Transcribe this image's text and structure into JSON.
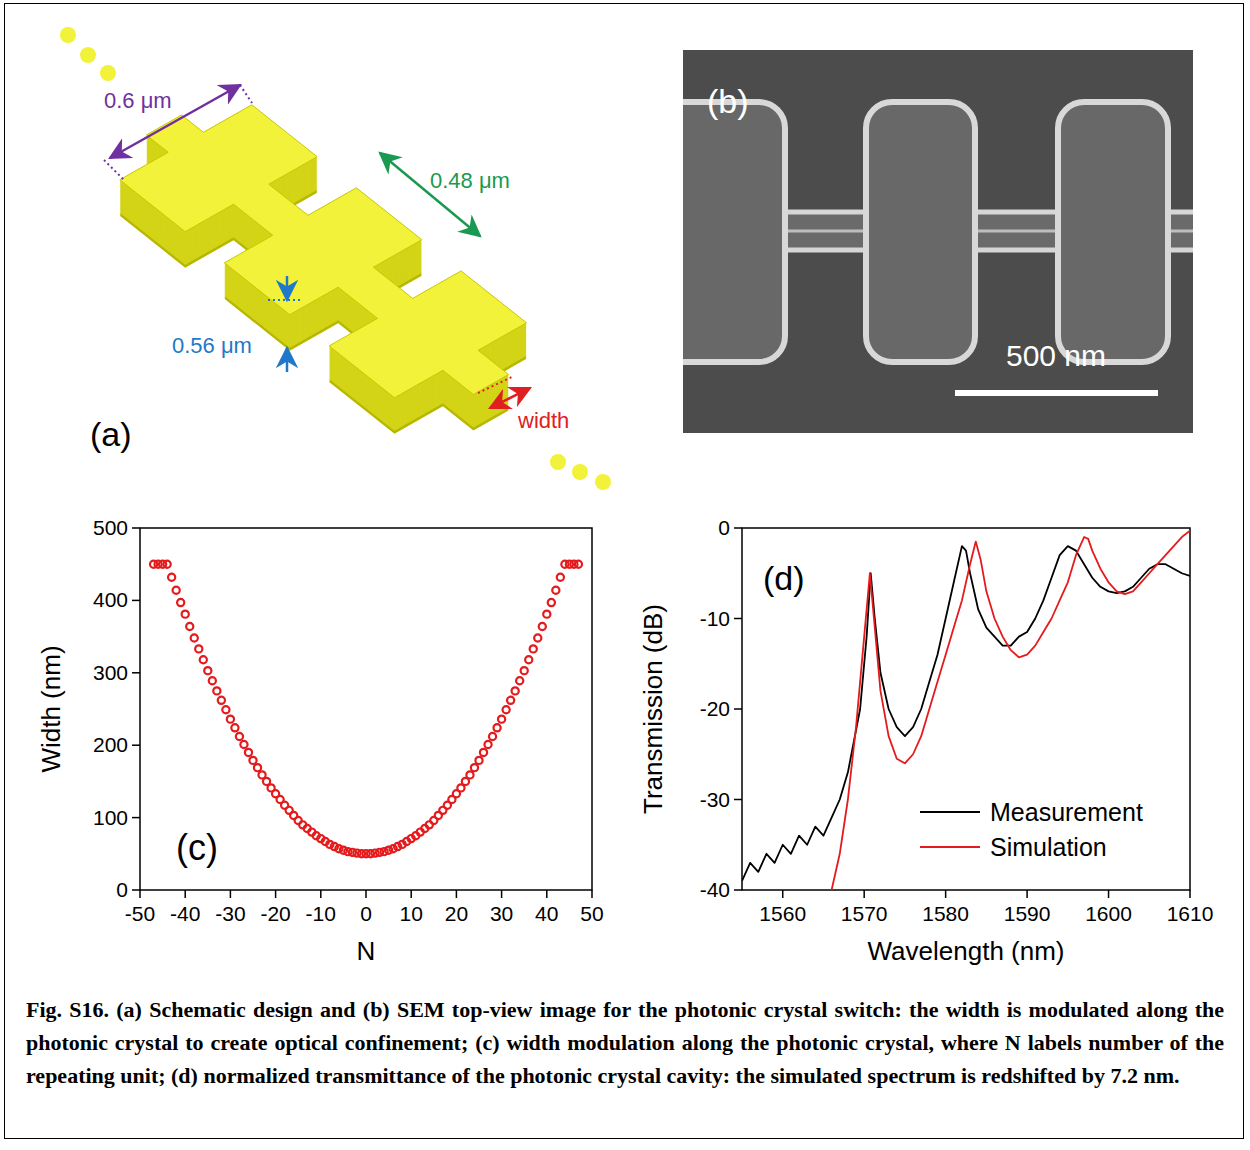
{
  "chart_data": [
    {
      "type": "scatter",
      "panel_label": "(c)",
      "x_label": "N",
      "y_label": "Width (nm)",
      "x": [
        -47,
        -46,
        -45,
        -44,
        -43,
        -42,
        -41,
        -40,
        -39,
        -38,
        -37,
        -36,
        -35,
        -34,
        -33,
        -32,
        -31,
        -30,
        -29,
        -28,
        -27,
        -26,
        -25,
        -24,
        -23,
        -22,
        -21,
        -20,
        -19,
        -18,
        -17,
        -16,
        -15,
        -14,
        -13,
        -12,
        -11,
        -10,
        -9,
        -8,
        -7,
        -6,
        -5,
        -4,
        -3,
        -2,
        -1,
        0,
        1,
        2,
        3,
        4,
        5,
        6,
        7,
        8,
        9,
        10,
        11,
        12,
        13,
        14,
        15,
        16,
        17,
        18,
        19,
        20,
        21,
        22,
        23,
        24,
        25,
        26,
        27,
        28,
        29,
        30,
        31,
        32,
        33,
        34,
        35,
        36,
        37,
        38,
        39,
        40,
        41,
        42,
        43,
        44,
        45,
        46,
        47
      ],
      "values": [
        450,
        450,
        450,
        450,
        432,
        414,
        397,
        381,
        364,
        348,
        333,
        318,
        303,
        289,
        275,
        262,
        249,
        236,
        224,
        212,
        201,
        190,
        179,
        169,
        159,
        150,
        141,
        133,
        125,
        117,
        110,
        103,
        96,
        90,
        85,
        80,
        75,
        71,
        67,
        63,
        60,
        57,
        55,
        53,
        52,
        51,
        50,
        50,
        50,
        51,
        52,
        53,
        55,
        57,
        60,
        63,
        67,
        71,
        75,
        80,
        85,
        90,
        96,
        103,
        110,
        117,
        125,
        133,
        141,
        150,
        159,
        169,
        179,
        190,
        201,
        212,
        224,
        236,
        249,
        262,
        275,
        289,
        303,
        318,
        333,
        348,
        364,
        381,
        397,
        414,
        432,
        450,
        450,
        450,
        450
      ],
      "color": "#e41a1c",
      "marker": "circle",
      "xlim": [
        -50,
        50
      ],
      "xticks": [
        -50,
        -40,
        -30,
        -20,
        -10,
        0,
        10,
        20,
        30,
        40,
        50
      ],
      "ylim": [
        0,
        500
      ],
      "yticks": [
        0,
        100,
        200,
        300,
        400,
        500
      ],
      "grid": false
    },
    {
      "type": "line",
      "panel_label": "(d)",
      "x_label": "Wavelength (nm)",
      "y_label": "Transmission (dB)",
      "series": [
        {
          "name": "Measurement",
          "color": "#000000",
          "x": [
            1555,
            1556,
            1557,
            1558,
            1559,
            1560,
            1561,
            1562,
            1563,
            1564,
            1565,
            1566,
            1567,
            1568,
            1569.5,
            1570.3,
            1570.8,
            1571.3,
            1572,
            1573,
            1574,
            1575,
            1576,
            1577,
            1578,
            1579,
            1580,
            1581,
            1582,
            1582.5,
            1583,
            1584,
            1585,
            1586,
            1587,
            1588,
            1589,
            1590,
            1591,
            1592,
            1593,
            1594,
            1595,
            1596,
            1597,
            1598,
            1599,
            1600,
            1601,
            1602,
            1603,
            1604,
            1605,
            1606,
            1607,
            1608,
            1609,
            1610
          ],
          "values": [
            -39,
            -37,
            -38,
            -36,
            -37,
            -35,
            -36,
            -34,
            -35,
            -33,
            -34,
            -32,
            -30,
            -27,
            -20,
            -12,
            -5,
            -10,
            -16,
            -20,
            -22,
            -23,
            -22,
            -20,
            -17,
            -14,
            -10,
            -6,
            -2,
            -2.5,
            -5,
            -9,
            -11,
            -12,
            -13,
            -13,
            -12,
            -11.5,
            -10,
            -8,
            -5.5,
            -3,
            -2,
            -2.5,
            -4,
            -5.5,
            -6.5,
            -7,
            -7.2,
            -7,
            -6.5,
            -5.5,
            -4.5,
            -4,
            -4,
            -4.5,
            -5,
            -5.3
          ]
        },
        {
          "name": "Simulation",
          "color": "#e41a1c",
          "x": [
            1566,
            1567,
            1568,
            1569,
            1570,
            1570.7,
            1571.2,
            1572,
            1573,
            1574,
            1575,
            1576,
            1577,
            1578,
            1579,
            1580,
            1581,
            1582,
            1583,
            1583.7,
            1584.3,
            1585,
            1586,
            1587,
            1588,
            1589,
            1590,
            1591,
            1592,
            1593,
            1594,
            1595,
            1596,
            1597,
            1597.5,
            1598,
            1599,
            1600,
            1601,
            1602,
            1603,
            1604,
            1605,
            1606,
            1607,
            1608,
            1609,
            1610
          ],
          "values": [
            -40,
            -36,
            -30,
            -22,
            -12,
            -5,
            -10,
            -18,
            -23,
            -25.5,
            -26,
            -25,
            -23,
            -20,
            -17,
            -14,
            -11,
            -8,
            -4,
            -1.5,
            -3.5,
            -7,
            -10,
            -12,
            -13.5,
            -14.3,
            -14,
            -13,
            -11.5,
            -10,
            -8,
            -6,
            -3,
            -1,
            -1.2,
            -2.5,
            -4.5,
            -6,
            -7,
            -7.3,
            -7,
            -6,
            -5,
            -4,
            -3,
            -2,
            -1,
            -0.3
          ]
        }
      ],
      "xlim": [
        1555,
        1610
      ],
      "xticks": [
        1560,
        1570,
        1580,
        1590,
        1600,
        1610
      ],
      "ylim": [
        -40,
        0
      ],
      "yticks": [
        -40,
        -30,
        -20,
        -10,
        0
      ],
      "legend": "lower right",
      "grid": false
    }
  ],
  "schematic": {
    "label": "(a)",
    "dimensions": [
      "0.6 μm",
      "0.48 μm",
      "0.56 μm"
    ],
    "width_label": "width"
  },
  "sem": {
    "label": "(b)",
    "scale_bar": "500 nm"
  },
  "caption": {
    "text": "Fig. S16. (a) Schematic design and (b) SEM top-view image for the photonic crystal switch: the width is modulated along the photonic crystal to create optical confinement; (c) width modulation along the photonic crystal, where N labels number of the repeating unit; (d) normalized transmittance of the photonic crystal cavity: the simulated spectrum is redshifted by 7.2 nm."
  }
}
